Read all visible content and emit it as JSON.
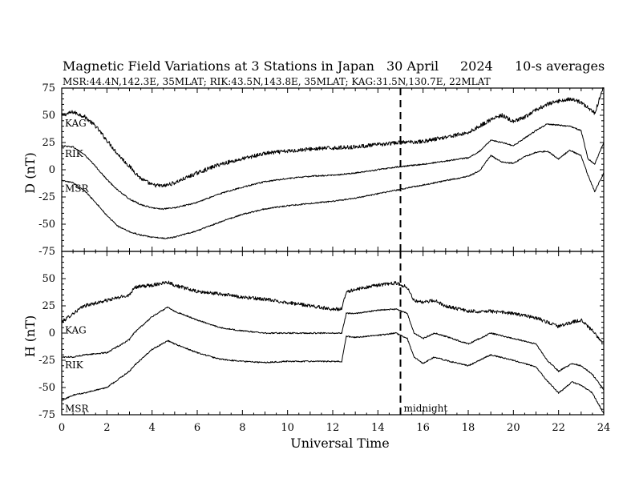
{
  "header": {
    "title": "Magnetic Field Variations at 3 Stations in Japan",
    "date": "30  April",
    "year": "2024",
    "averaging": "10-s averages",
    "stations_line": "MSR:44.4N,142.3E, 35MLAT;  RIK:43.5N,143.8E, 35MLAT;  KAG:31.5N,130.7E, 22MLAT"
  },
  "chart_data": [
    {
      "type": "line",
      "panel": "top",
      "ylabel": "D (nT)",
      "xlim": [
        0,
        24
      ],
      "ylim": [
        -75,
        75
      ],
      "yticks": [
        "75",
        "50",
        "25",
        "0",
        "-25",
        "-50",
        "-75"
      ],
      "series": [
        {
          "name": "KAG",
          "x": [
            0,
            0.5,
            1,
            1.5,
            2,
            2.5,
            3,
            3.5,
            4,
            4.5,
            5,
            6,
            7,
            8,
            9,
            10,
            11,
            12,
            13,
            14,
            15,
            16,
            17,
            18,
            18.5,
            19,
            19.5,
            20,
            20.5,
            21,
            21.5,
            22,
            22.5,
            23,
            23.3,
            23.6,
            24
          ],
          "values": [
            50,
            53,
            49,
            40,
            27,
            14,
            3,
            -8,
            -14,
            -15,
            -12,
            -3,
            5,
            10,
            15,
            17,
            19,
            20,
            21,
            23,
            25,
            26,
            30,
            34,
            40,
            46,
            50,
            44,
            48,
            55,
            60,
            63,
            65,
            62,
            57,
            52,
            77
          ]
        },
        {
          "name": "RIK",
          "x": [
            0,
            0.5,
            1,
            1.5,
            2,
            2.5,
            3,
            3.5,
            4,
            4.5,
            5,
            6,
            7,
            8,
            9,
            10,
            11,
            12,
            13,
            14,
            15,
            16,
            17,
            18,
            18.5,
            19,
            19.5,
            20,
            20.5,
            21,
            21.5,
            22,
            22.5,
            23,
            23.3,
            23.6,
            24
          ],
          "values": [
            22,
            21,
            14,
            3,
            -9,
            -19,
            -27,
            -32,
            -35,
            -36,
            -35,
            -30,
            -22,
            -16,
            -11,
            -8,
            -6,
            -5,
            -3,
            0,
            3,
            5,
            8,
            11,
            17,
            27,
            25,
            22,
            29,
            36,
            42,
            41,
            40,
            36,
            10,
            5,
            25
          ]
        },
        {
          "name": "MSR",
          "x": [
            0,
            0.5,
            1,
            1.5,
            2,
            2.5,
            3,
            3.5,
            4,
            4.5,
            5,
            6,
            7,
            8,
            9,
            10,
            11,
            12,
            13,
            14,
            15,
            16,
            17,
            18,
            18.5,
            19,
            19.5,
            20,
            20.5,
            21,
            21.5,
            22,
            22.5,
            23,
            23.3,
            23.6,
            24
          ],
          "values": [
            -10,
            -12,
            -19,
            -30,
            -42,
            -52,
            -57,
            -60,
            -62,
            -63,
            -62,
            -56,
            -48,
            -41,
            -36,
            -33,
            -31,
            -29,
            -26,
            -22,
            -18,
            -14,
            -10,
            -6,
            -1,
            13,
            7,
            6,
            12,
            16,
            17,
            10,
            18,
            13,
            -5,
            -20,
            -3
          ]
        }
      ]
    },
    {
      "type": "line",
      "panel": "bottom",
      "ylabel": "H (nT)",
      "xlabel": "Universal Time",
      "xlim": [
        0,
        24
      ],
      "xticks": [
        "0",
        "2",
        "4",
        "6",
        "8",
        "10",
        "12",
        "14",
        "16",
        "18",
        "20",
        "22",
        "24"
      ],
      "ylim": [
        -75,
        75
      ],
      "yticks": [
        "75",
        "50",
        "25",
        "0",
        "-25",
        "-50",
        "-75"
      ],
      "series": [
        {
          "name": "KAG",
          "x": [
            0,
            0.5,
            1,
            2,
            3,
            3.2,
            4,
            4.7,
            5,
            6,
            7,
            8,
            9,
            10,
            11,
            12,
            12.4,
            12.6,
            13,
            14,
            14.8,
            15.3,
            15.6,
            16,
            16.5,
            17,
            18,
            19,
            20,
            21,
            21.5,
            22,
            22.6,
            23,
            23.5,
            24
          ],
          "values": [
            10,
            18,
            25,
            30,
            35,
            42,
            44,
            47,
            44,
            38,
            36,
            33,
            31,
            28,
            25,
            22,
            22,
            38,
            40,
            44,
            46,
            42,
            30,
            28,
            30,
            25,
            20,
            20,
            18,
            14,
            10,
            6,
            10,
            12,
            2,
            -10
          ]
        },
        {
          "name": "RIK",
          "x": [
            0,
            0.5,
            1,
            2,
            3,
            3.2,
            4,
            4.7,
            5,
            6,
            7,
            8,
            9,
            10,
            11,
            12,
            12.4,
            12.6,
            13,
            14,
            14.8,
            15.3,
            15.6,
            16,
            16.5,
            17,
            18,
            19,
            20,
            21,
            21.5,
            22,
            22.6,
            23,
            23.5,
            24
          ],
          "values": [
            -22,
            -22,
            -20,
            -18,
            -6,
            0,
            15,
            24,
            20,
            12,
            5,
            2,
            0,
            0,
            0,
            0,
            0,
            18,
            18,
            21,
            22,
            18,
            0,
            -5,
            0,
            -3,
            -10,
            0,
            -5,
            -10,
            -25,
            -35,
            -28,
            -30,
            -38,
            -52
          ]
        },
        {
          "name": "MSR",
          "x": [
            0,
            0.5,
            1,
            2,
            3,
            3.2,
            4,
            4.7,
            5,
            6,
            7,
            8,
            9,
            10,
            11,
            12,
            12.4,
            12.6,
            13,
            14,
            14.8,
            15.3,
            15.6,
            16,
            16.5,
            17,
            18,
            19,
            20,
            21,
            21.5,
            22,
            22.6,
            23,
            23.5,
            24
          ],
          "values": [
            -62,
            -57,
            -55,
            -50,
            -35,
            -30,
            -15,
            -7,
            -10,
            -18,
            -24,
            -26,
            -27,
            -26,
            -26,
            -26,
            -26,
            -3,
            -4,
            -2,
            0,
            -5,
            -22,
            -28,
            -22,
            -25,
            -30,
            -20,
            -25,
            -31,
            -44,
            -55,
            -45,
            -48,
            -55,
            -74
          ]
        }
      ]
    }
  ],
  "annotation": {
    "midnight_ut": 15,
    "label": "midnight"
  }
}
